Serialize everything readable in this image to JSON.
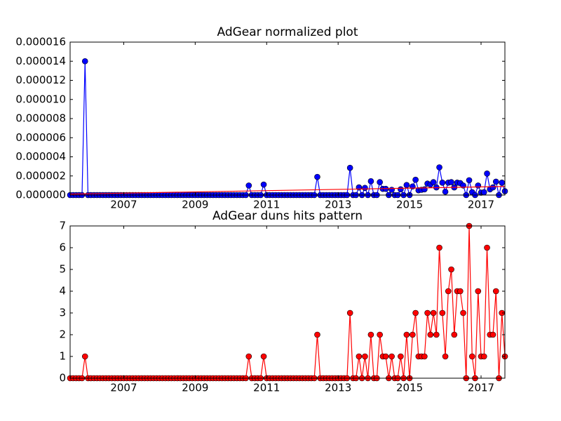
{
  "chart_data": [
    {
      "type": "line",
      "title": "AdGear normalized plot",
      "x": [
        2005.5,
        2005.583,
        2005.667,
        2005.75,
        2005.833,
        2005.917,
        2006,
        2006.083,
        2006.167,
        2006.25,
        2006.333,
        2006.417,
        2006.5,
        2006.583,
        2006.667,
        2006.75,
        2006.833,
        2006.917,
        2007,
        2007.083,
        2007.167,
        2007.25,
        2007.333,
        2007.417,
        2007.5,
        2007.583,
        2007.667,
        2007.75,
        2007.833,
        2007.917,
        2008,
        2008.083,
        2008.167,
        2008.25,
        2008.333,
        2008.417,
        2008.5,
        2008.583,
        2008.667,
        2008.75,
        2008.833,
        2008.917,
        2009,
        2009.083,
        2009.167,
        2009.25,
        2009.333,
        2009.417,
        2009.5,
        2009.583,
        2009.667,
        2009.75,
        2009.833,
        2009.917,
        2010,
        2010.083,
        2010.167,
        2010.25,
        2010.333,
        2010.417,
        2010.5,
        2010.583,
        2010.667,
        2010.75,
        2010.833,
        2010.917,
        2011,
        2011.083,
        2011.167,
        2011.25,
        2011.333,
        2011.417,
        2011.5,
        2011.583,
        2011.667,
        2011.75,
        2011.833,
        2011.917,
        2012,
        2012.083,
        2012.167,
        2012.25,
        2012.333,
        2012.417,
        2012.5,
        2012.583,
        2012.667,
        2012.75,
        2012.833,
        2012.917,
        2013,
        2013.083,
        2013.167,
        2013.25,
        2013.333,
        2013.417,
        2013.5,
        2013.583,
        2013.667,
        2013.75,
        2013.833,
        2013.917,
        2014,
        2014.083,
        2014.167,
        2014.25,
        2014.333,
        2014.417,
        2014.5,
        2014.583,
        2014.667,
        2014.75,
        2014.833,
        2014.917,
        2015,
        2015.083,
        2015.167,
        2015.25,
        2015.333,
        2015.417,
        2015.5,
        2015.583,
        2015.667,
        2015.75,
        2015.833,
        2015.917,
        2016,
        2016.083,
        2016.167,
        2016.25,
        2016.333,
        2016.417,
        2016.5,
        2016.583,
        2016.667,
        2016.75,
        2016.833,
        2016.917,
        2017,
        2017.083,
        2017.167,
        2017.25,
        2017.333,
        2017.417,
        2017.5,
        2017.583,
        2017.667
      ],
      "series": [
        {
          "color": "#0000ff",
          "marker": true,
          "values": [
            0,
            0,
            0,
            0,
            0,
            1.4e-05,
            0,
            0,
            0,
            0,
            0,
            0,
            0,
            0,
            0,
            0,
            0,
            0,
            0,
            0,
            0,
            0,
            0,
            0,
            0,
            0,
            0,
            0,
            0,
            0,
            0,
            0,
            0,
            0,
            0,
            0,
            0,
            0,
            0,
            0,
            0,
            0,
            0,
            0,
            0,
            0,
            0,
            0,
            0,
            0,
            0,
            0,
            0,
            0,
            0,
            0,
            0,
            0,
            0,
            0,
            1e-06,
            0,
            0,
            0,
            0,
            1.1e-06,
            0,
            0,
            0,
            0,
            0,
            0,
            0,
            0,
            0,
            0,
            0,
            0,
            0,
            0,
            0,
            0,
            0,
            1.9e-06,
            0,
            0,
            0,
            0,
            0,
            0,
            0,
            0,
            0,
            0,
            2.85e-06,
            0,
            0,
            8e-07,
            0,
            7.5e-07,
            0,
            1.45e-06,
            0,
            0,
            1.35e-06,
            6.5e-07,
            6.5e-07,
            0,
            5.5e-07,
            0,
            0,
            6e-07,
            0,
            1.05e-06,
            0,
            9e-07,
            1.6e-06,
            5e-07,
            5.5e-07,
            6e-07,
            1.2e-06,
            1.1e-06,
            1.35e-06,
            8e-07,
            2.9e-06,
            1.3e-06,
            3.5e-07,
            1.3e-06,
            1.35e-06,
            8e-07,
            1.3e-06,
            1.25e-06,
            1e-06,
            0,
            1.55e-06,
            3e-07,
            0,
            1e-06,
            2.5e-07,
            3e-07,
            2.25e-06,
            6e-07,
            8e-07,
            1.4e-06,
            0,
            1.3e-06,
            4e-07
          ]
        },
        {
          "color": "#ff0000",
          "marker": false,
          "x": [
            2005.5,
            2017.667
          ],
          "values": [
            1e-07,
            9e-07
          ]
        }
      ],
      "xlim": [
        2005.5,
        2017.667
      ],
      "ylim": [
        0,
        1.6e-05
      ],
      "xticks": [
        2007,
        2009,
        2011,
        2013,
        2015,
        2017
      ],
      "yticks": [
        {
          "value": 0,
          "label": "0.000000"
        },
        {
          "value": 2e-06,
          "label": "0.000002"
        },
        {
          "value": 4e-06,
          "label": "0.000004"
        },
        {
          "value": 6e-06,
          "label": "0.000006"
        },
        {
          "value": 8e-06,
          "label": "0.000008"
        },
        {
          "value": 1e-05,
          "label": "0.000010"
        },
        {
          "value": 1.2e-05,
          "label": "0.000012"
        },
        {
          "value": 1.4e-05,
          "label": "0.000014"
        },
        {
          "value": 1.6e-05,
          "label": "0.000016"
        }
      ]
    },
    {
      "type": "line",
      "title": "AdGear duns hits pattern",
      "x": [
        2005.5,
        2005.583,
        2005.667,
        2005.75,
        2005.833,
        2005.917,
        2006,
        2006.083,
        2006.167,
        2006.25,
        2006.333,
        2006.417,
        2006.5,
        2006.583,
        2006.667,
        2006.75,
        2006.833,
        2006.917,
        2007,
        2007.083,
        2007.167,
        2007.25,
        2007.333,
        2007.417,
        2007.5,
        2007.583,
        2007.667,
        2007.75,
        2007.833,
        2007.917,
        2008,
        2008.083,
        2008.167,
        2008.25,
        2008.333,
        2008.417,
        2008.5,
        2008.583,
        2008.667,
        2008.75,
        2008.833,
        2008.917,
        2009,
        2009.083,
        2009.167,
        2009.25,
        2009.333,
        2009.417,
        2009.5,
        2009.583,
        2009.667,
        2009.75,
        2009.833,
        2009.917,
        2010,
        2010.083,
        2010.167,
        2010.25,
        2010.333,
        2010.417,
        2010.5,
        2010.583,
        2010.667,
        2010.75,
        2010.833,
        2010.917,
        2011,
        2011.083,
        2011.167,
        2011.25,
        2011.333,
        2011.417,
        2011.5,
        2011.583,
        2011.667,
        2011.75,
        2011.833,
        2011.917,
        2012,
        2012.083,
        2012.167,
        2012.25,
        2012.333,
        2012.417,
        2012.5,
        2012.583,
        2012.667,
        2012.75,
        2012.833,
        2012.917,
        2013,
        2013.083,
        2013.167,
        2013.25,
        2013.333,
        2013.417,
        2013.5,
        2013.583,
        2013.667,
        2013.75,
        2013.833,
        2013.917,
        2014,
        2014.083,
        2014.167,
        2014.25,
        2014.333,
        2014.417,
        2014.5,
        2014.583,
        2014.667,
        2014.75,
        2014.833,
        2014.917,
        2015,
        2015.083,
        2015.167,
        2015.25,
        2015.333,
        2015.417,
        2015.5,
        2015.583,
        2015.667,
        2015.75,
        2015.833,
        2015.917,
        2016,
        2016.083,
        2016.167,
        2016.25,
        2016.333,
        2016.417,
        2016.5,
        2016.583,
        2016.667,
        2016.75,
        2016.833,
        2016.917,
        2017,
        2017.083,
        2017.167,
        2017.25,
        2017.333,
        2017.417,
        2017.5,
        2017.583,
        2017.667
      ],
      "series": [
        {
          "color": "#ff0000",
          "marker": true,
          "values": [
            0,
            0,
            0,
            0,
            0,
            1,
            0,
            0,
            0,
            0,
            0,
            0,
            0,
            0,
            0,
            0,
            0,
            0,
            0,
            0,
            0,
            0,
            0,
            0,
            0,
            0,
            0,
            0,
            0,
            0,
            0,
            0,
            0,
            0,
            0,
            0,
            0,
            0,
            0,
            0,
            0,
            0,
            0,
            0,
            0,
            0,
            0,
            0,
            0,
            0,
            0,
            0,
            0,
            0,
            0,
            0,
            0,
            0,
            0,
            0,
            1,
            0,
            0,
            0,
            0,
            1,
            0,
            0,
            0,
            0,
            0,
            0,
            0,
            0,
            0,
            0,
            0,
            0,
            0,
            0,
            0,
            0,
            0,
            2,
            0,
            0,
            0,
            0,
            0,
            0,
            0,
            0,
            0,
            0,
            3,
            0,
            0,
            1,
            0,
            1,
            0,
            2,
            0,
            0,
            2,
            1,
            1,
            0,
            1,
            0,
            0,
            1,
            0,
            2,
            0,
            2,
            3,
            1,
            1,
            1,
            3,
            2,
            3,
            2,
            6,
            3,
            1,
            4,
            5,
            2,
            4,
            4,
            3,
            0,
            7,
            1,
            0,
            4,
            1,
            1,
            6,
            2,
            2,
            4,
            0,
            3,
            1
          ]
        }
      ],
      "xlim": [
        2005.5,
        2017.667
      ],
      "ylim": [
        0,
        7
      ],
      "xticks": [
        2007,
        2009,
        2011,
        2013,
        2015,
        2017
      ],
      "yticks": [
        0,
        1,
        2,
        3,
        4,
        5,
        6,
        7
      ]
    }
  ]
}
